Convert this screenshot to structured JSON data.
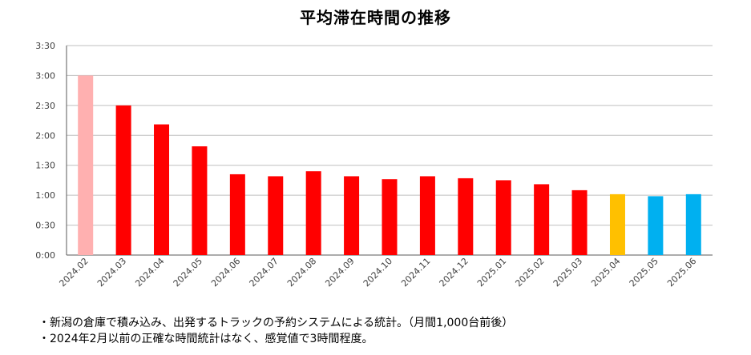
{
  "chart_data": {
    "type": "bar",
    "title": "平均滞在時間の推移",
    "categories": [
      "2024.02",
      "2024.03",
      "2024.04",
      "2024.05",
      "2024.06",
      "2024.07",
      "2024.08",
      "2024.09",
      "2024.10",
      "2024.11",
      "2024.12",
      "2025.01",
      "2025.02",
      "2025.03",
      "2025.04",
      "2025.05",
      "2025.06"
    ],
    "values_minutes": [
      180,
      150,
      131,
      109,
      81,
      79,
      84,
      79,
      76,
      79,
      77,
      75,
      71,
      65,
      61,
      59,
      61
    ],
    "bar_colors": [
      "#ffb0b0",
      "#ff0000",
      "#ff0000",
      "#ff0000",
      "#ff0000",
      "#ff0000",
      "#ff0000",
      "#ff0000",
      "#ff0000",
      "#ff0000",
      "#ff0000",
      "#ff0000",
      "#ff0000",
      "#ff0000",
      "#ffc000",
      "#00b0f0",
      "#00b0f0"
    ],
    "ylim_minutes": [
      0,
      210
    ],
    "y_ticks": [
      {
        "minutes": 0,
        "label": "0:00"
      },
      {
        "minutes": 30,
        "label": "0:30"
      },
      {
        "minutes": 60,
        "label": "1:00"
      },
      {
        "minutes": 90,
        "label": "1:30"
      },
      {
        "minutes": 120,
        "label": "2:00"
      },
      {
        "minutes": 150,
        "label": "2:30"
      },
      {
        "minutes": 180,
        "label": "3:00"
      },
      {
        "minutes": 210,
        "label": "3:30"
      }
    ],
    "grid": true,
    "legend": "none",
    "xlabel": "",
    "ylabel": ""
  },
  "notes": [
    "・新潟の倉庫で積み込み、出発するトラックの予約システムによる統計。（月間1,000台前後）",
    "・2024年2月以前の正確な時間統計はなく、感覚値で3時間程度。"
  ]
}
